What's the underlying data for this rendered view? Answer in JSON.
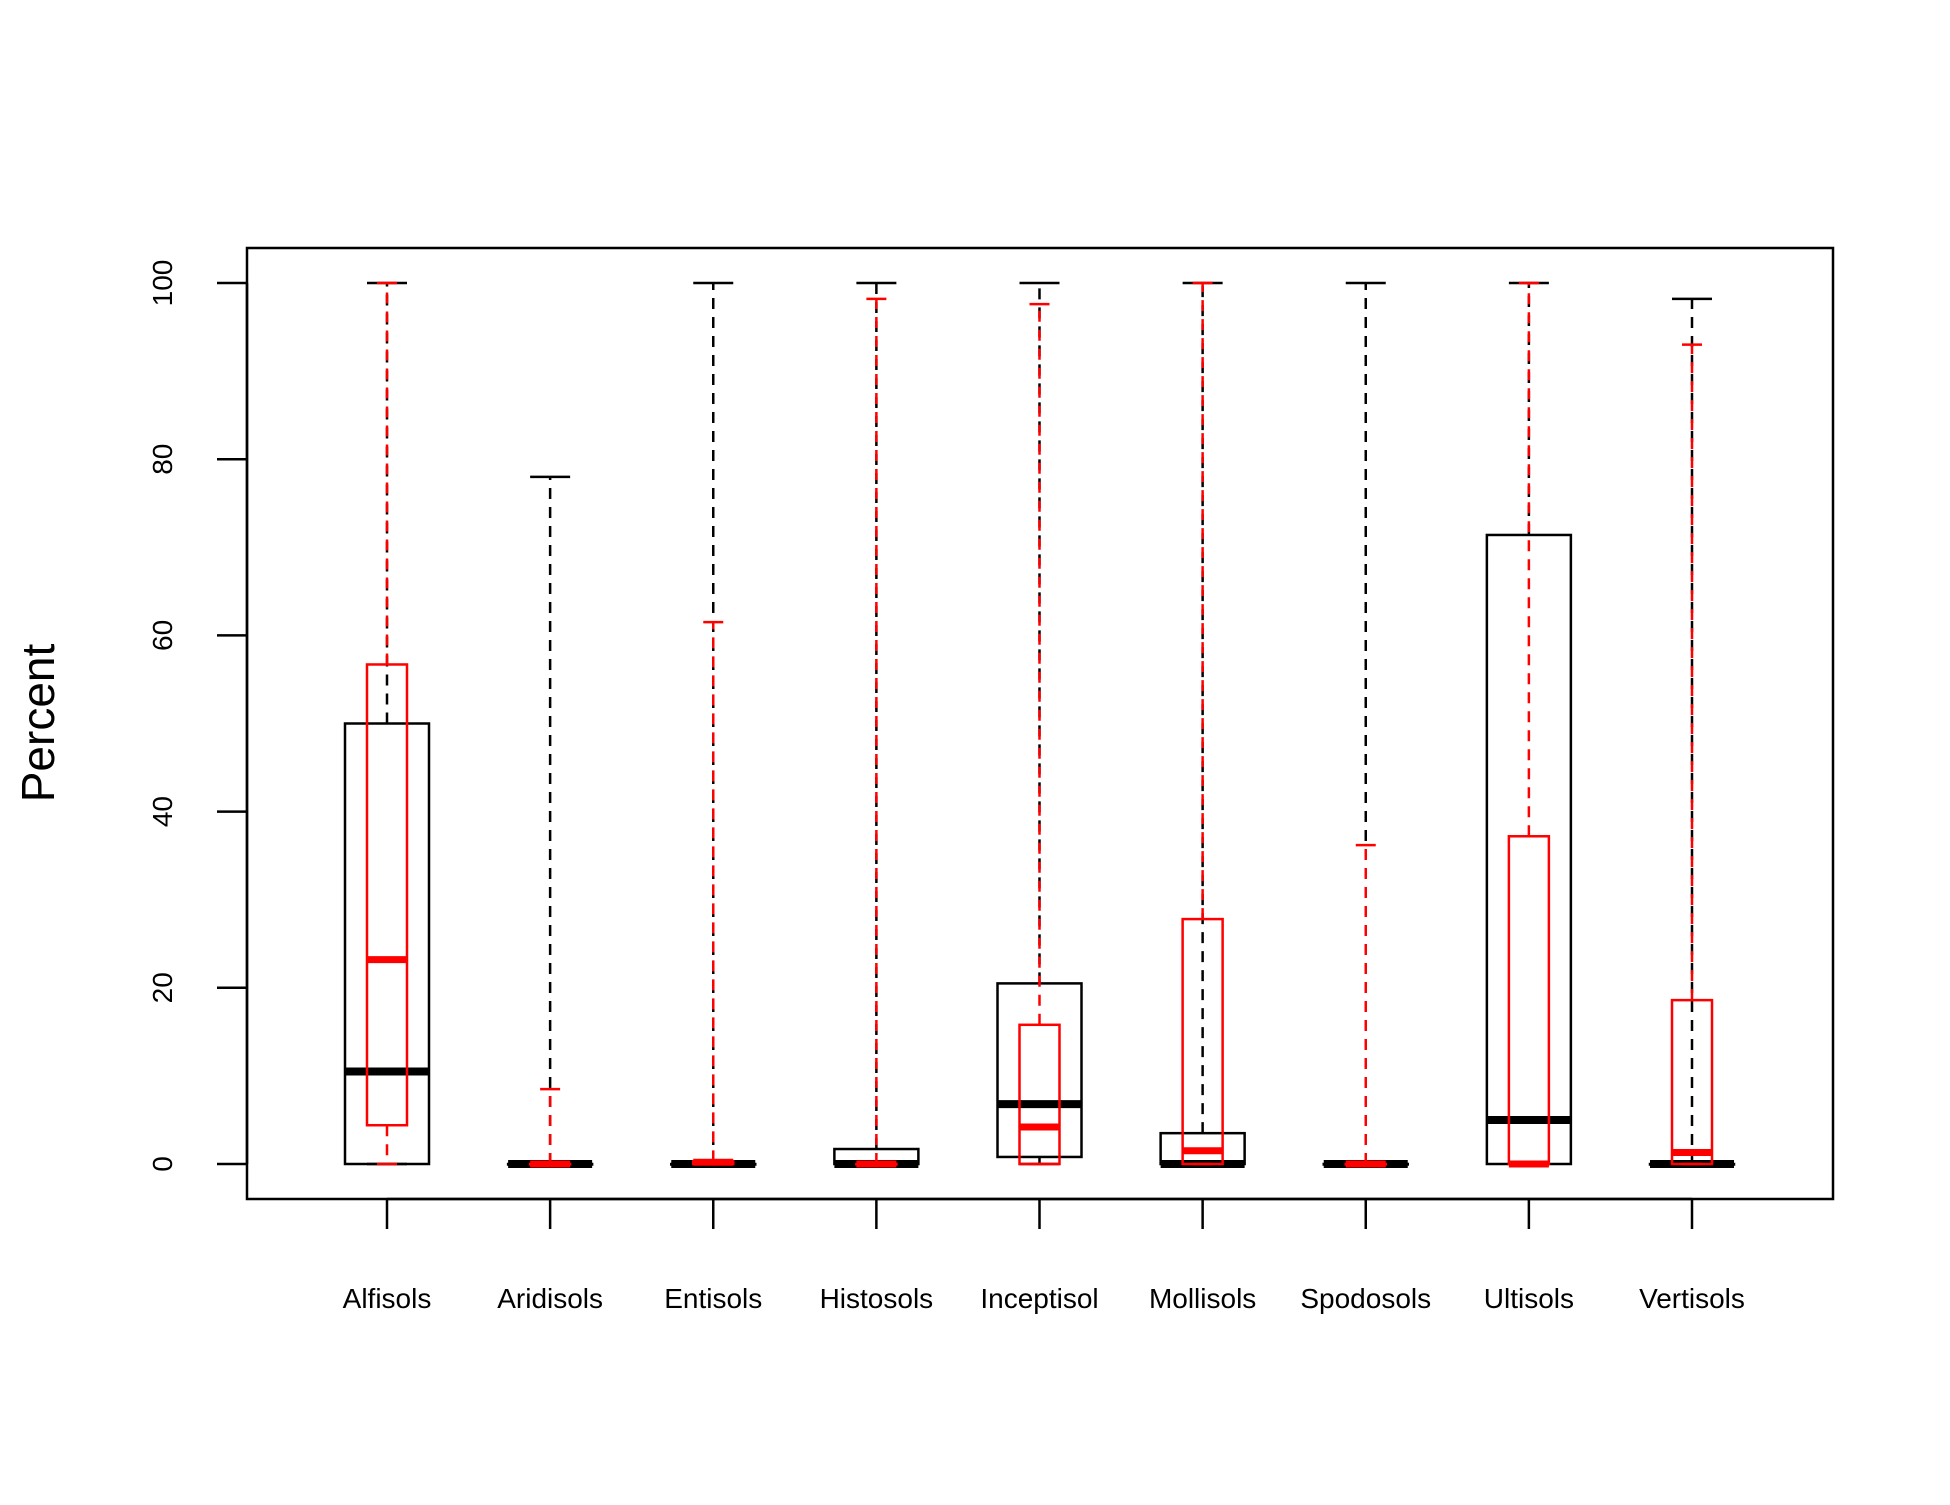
{
  "chart_data": {
    "type": "boxplot",
    "title": "",
    "xlabel": "",
    "ylabel": "Percent",
    "ylim": [
      -4,
      104
    ],
    "yticks": [
      0,
      20,
      40,
      60,
      80,
      100
    ],
    "grid": false,
    "categories": [
      "Alfisols",
      "Aridisols",
      "Entisols",
      "Histosols",
      "Inceptisol",
      "Mollisols",
      "Spodosols",
      "Ultisols",
      "Vertisols"
    ],
    "series": [
      {
        "color": "#000000",
        "boxes": [
          {
            "lower_whisker": 0,
            "q1": 0,
            "median": 10.5,
            "q3": 50,
            "upper_whisker": 100
          },
          {
            "lower_whisker": 0,
            "q1": 0,
            "median": 0,
            "q3": 0,
            "upper_whisker": 78
          },
          {
            "lower_whisker": 0,
            "q1": 0,
            "median": 0,
            "q3": 0,
            "upper_whisker": 100
          },
          {
            "lower_whisker": 0,
            "q1": 0,
            "median": 0,
            "q3": 1.7,
            "upper_whisker": 100
          },
          {
            "lower_whisker": 0,
            "q1": 0.8,
            "median": 6.8,
            "q3": 20.5,
            "upper_whisker": 100
          },
          {
            "lower_whisker": 0,
            "q1": 0,
            "median": 0,
            "q3": 3.5,
            "upper_whisker": 100
          },
          {
            "lower_whisker": 0,
            "q1": 0,
            "median": 0,
            "q3": 0,
            "upper_whisker": 100
          },
          {
            "lower_whisker": 0,
            "q1": 0,
            "median": 5,
            "q3": 71.4,
            "upper_whisker": 100
          },
          {
            "lower_whisker": 0,
            "q1": 0,
            "median": 0,
            "q3": 0,
            "upper_whisker": 98.2
          }
        ]
      },
      {
        "color": "#ff0000",
        "boxes": [
          {
            "lower_whisker": 0,
            "q1": 4.4,
            "median": 23.2,
            "q3": 56.7,
            "upper_whisker": 100
          },
          {
            "lower_whisker": 0,
            "q1": 0,
            "median": 0,
            "q3": 0,
            "upper_whisker": 8.5
          },
          {
            "lower_whisker": 0,
            "q1": 0,
            "median": 0.2,
            "q3": 0.3,
            "upper_whisker": 61.5
          },
          {
            "lower_whisker": 0,
            "q1": 0,
            "median": 0,
            "q3": 0,
            "upper_whisker": 98.2
          },
          {
            "lower_whisker": 0,
            "q1": 0,
            "median": 4.2,
            "q3": 15.8,
            "upper_whisker": 97.6
          },
          {
            "lower_whisker": 0,
            "q1": 0,
            "median": 1.5,
            "q3": 27.8,
            "upper_whisker": 100
          },
          {
            "lower_whisker": 0,
            "q1": 0,
            "median": 0,
            "q3": 0,
            "upper_whisker": 36.2
          },
          {
            "lower_whisker": 0,
            "q1": 0,
            "median": 0,
            "q3": 37.2,
            "upper_whisker": 100
          },
          {
            "lower_whisker": 0,
            "q1": 0,
            "median": 1.3,
            "q3": 18.6,
            "upper_whisker": 93
          }
        ]
      }
    ]
  }
}
